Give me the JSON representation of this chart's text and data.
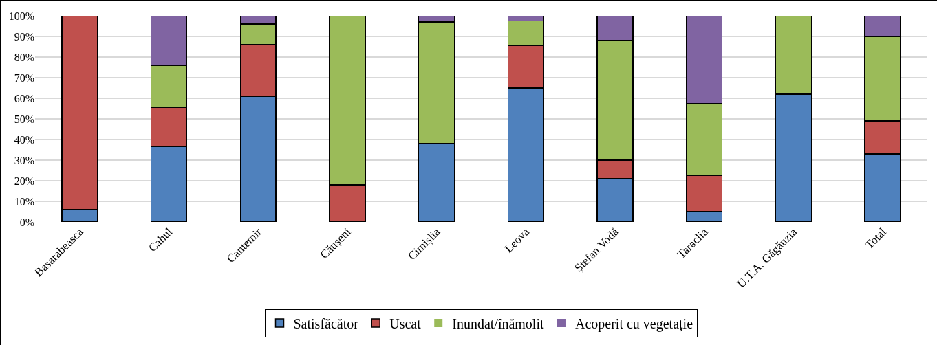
{
  "chart_data": {
    "type": "bar",
    "stacked": true,
    "categories": [
      "Basarabeasca",
      "Cahul",
      "Cantemir",
      "Căușeni",
      "Cimișlia",
      "Leova",
      "Ștefan Vodă",
      "Taraclia",
      "U.T.A. Găgăuzia",
      "Total"
    ],
    "series": [
      {
        "name": "Satisfăcător",
        "color": "#4f81bd",
        "values": [
          6,
          36.5,
          61,
          0,
          38,
          65,
          21,
          5,
          62,
          33
        ]
      },
      {
        "name": "Uscat",
        "color": "#c0504d",
        "values": [
          94,
          19,
          25,
          18,
          0,
          20.5,
          9,
          17.5,
          0,
          16
        ]
      },
      {
        "name": "Inundat/înămolit",
        "color": "#9bbb59",
        "values": [
          0,
          20.5,
          10,
          82,
          59,
          12,
          58,
          35,
          38,
          41
        ]
      },
      {
        "name": "Acoperit cu vegetație",
        "color": "#8064a2",
        "values": [
          0,
          24,
          4,
          0,
          3,
          2.5,
          12,
          42.5,
          0,
          10
        ]
      }
    ],
    "ylim": [
      0,
      100
    ],
    "yticks": [
      {
        "value": 0,
        "label": "0%"
      },
      {
        "value": 10,
        "label": "10%"
      },
      {
        "value": 20,
        "label": "20%"
      },
      {
        "value": 30,
        "label": "30%"
      },
      {
        "value": 40,
        "label": "40%"
      },
      {
        "value": 50,
        "label": "50%"
      },
      {
        "value": 60,
        "label": "60%"
      },
      {
        "value": 70,
        "label": "70%"
      },
      {
        "value": 80,
        "label": "80%"
      },
      {
        "value": 90,
        "label": "90%"
      },
      {
        "value": 100,
        "label": "100%"
      }
    ],
    "grid": "y",
    "legend": "bottom"
  }
}
